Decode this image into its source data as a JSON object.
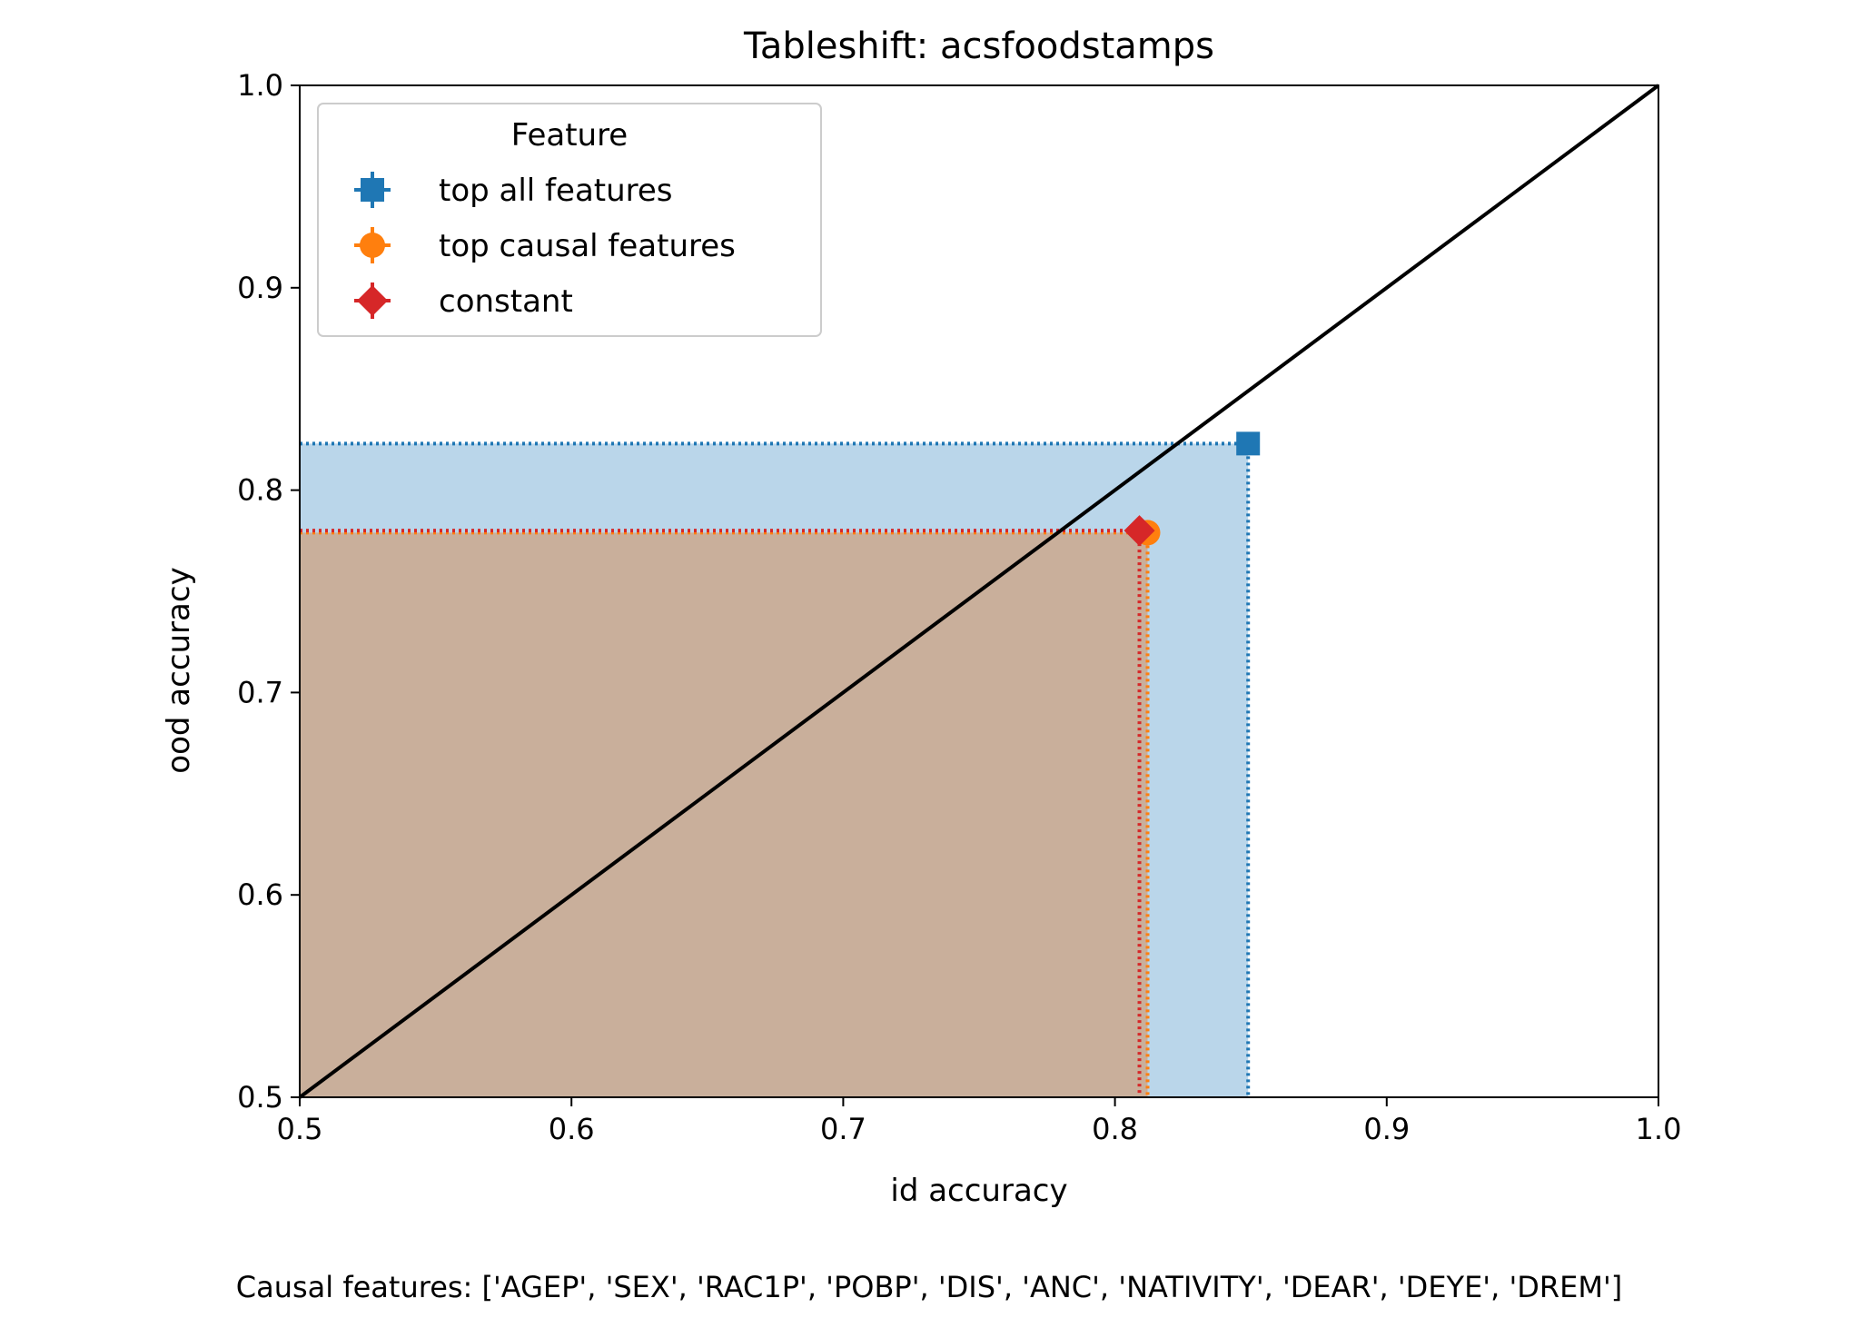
{
  "chart_data": {
    "type": "scatter",
    "title": "Tableshift: acsfoodstamps",
    "xlabel": "id accuracy",
    "ylabel": "ood accuracy",
    "xlim": [
      0.5,
      1.0
    ],
    "ylim": [
      0.5,
      1.0
    ],
    "xticks": [
      0.5,
      0.6,
      0.7,
      0.8,
      0.9,
      1.0
    ],
    "yticks": [
      0.5,
      0.6,
      0.7,
      0.8,
      0.9,
      1.0
    ],
    "xtick_labels": [
      "0.5",
      "0.6",
      "0.7",
      "0.8",
      "0.9",
      "1.0"
    ],
    "ytick_labels": [
      "0.5",
      "0.6",
      "0.7",
      "0.8",
      "0.9",
      "1.0"
    ],
    "grid": false,
    "diagonal_line": true,
    "legend": {
      "title": "Feature",
      "placement": "top-left"
    },
    "series": [
      {
        "name": "top all features",
        "x": 0.849,
        "y": 0.823,
        "marker": "square",
        "color": "#1f77b4",
        "fill": "#bad6ea"
      },
      {
        "name": "top causal features",
        "x": 0.812,
        "y": 0.779,
        "marker": "circle",
        "color": "#ff7f0e",
        "fill": "#ffcfa5"
      },
      {
        "name": "constant",
        "x": 0.809,
        "y": 0.78,
        "marker": "diamond",
        "color": "#d62728",
        "fill": null
      }
    ],
    "overlap_fill_color": "#c9af9b",
    "footnote": "Causal features: ['AGEP', 'SEX', 'RAC1P', 'POBP', 'DIS', 'ANC', 'NATIVITY', 'DEAR', 'DEYE', 'DREM']"
  }
}
